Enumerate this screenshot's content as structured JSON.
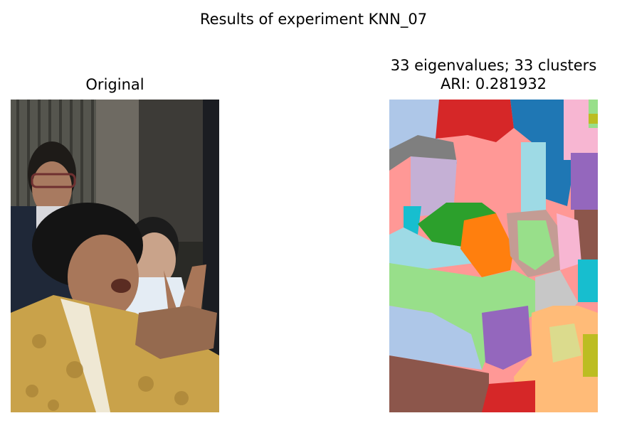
{
  "figure": {
    "suptitle": "Results of experiment KNN_07"
  },
  "left_panel": {
    "title": "Original",
    "image": "photo-of-elderly-woman-gesturing-with-people-behind"
  },
  "right_panel": {
    "title_line1": "33 eigenvalues; 33 clusters",
    "title_line2": "ARI: 0.281932",
    "image": "segmentation-map-color-clusters",
    "palette": [
      "#aec7e8",
      "#d62728",
      "#1f77b4",
      "#f7b6d2",
      "#7f7f7f",
      "#c5b0d5",
      "#ff9896",
      "#9edae5",
      "#9467bd",
      "#2ca02c",
      "#ff7f0e",
      "#98df8a",
      "#c49c94",
      "#8c564b",
      "#17becf",
      "#e377c2",
      "#c7c7c7",
      "#ffbb78",
      "#dbdb8d",
      "#bcbd22"
    ]
  }
}
